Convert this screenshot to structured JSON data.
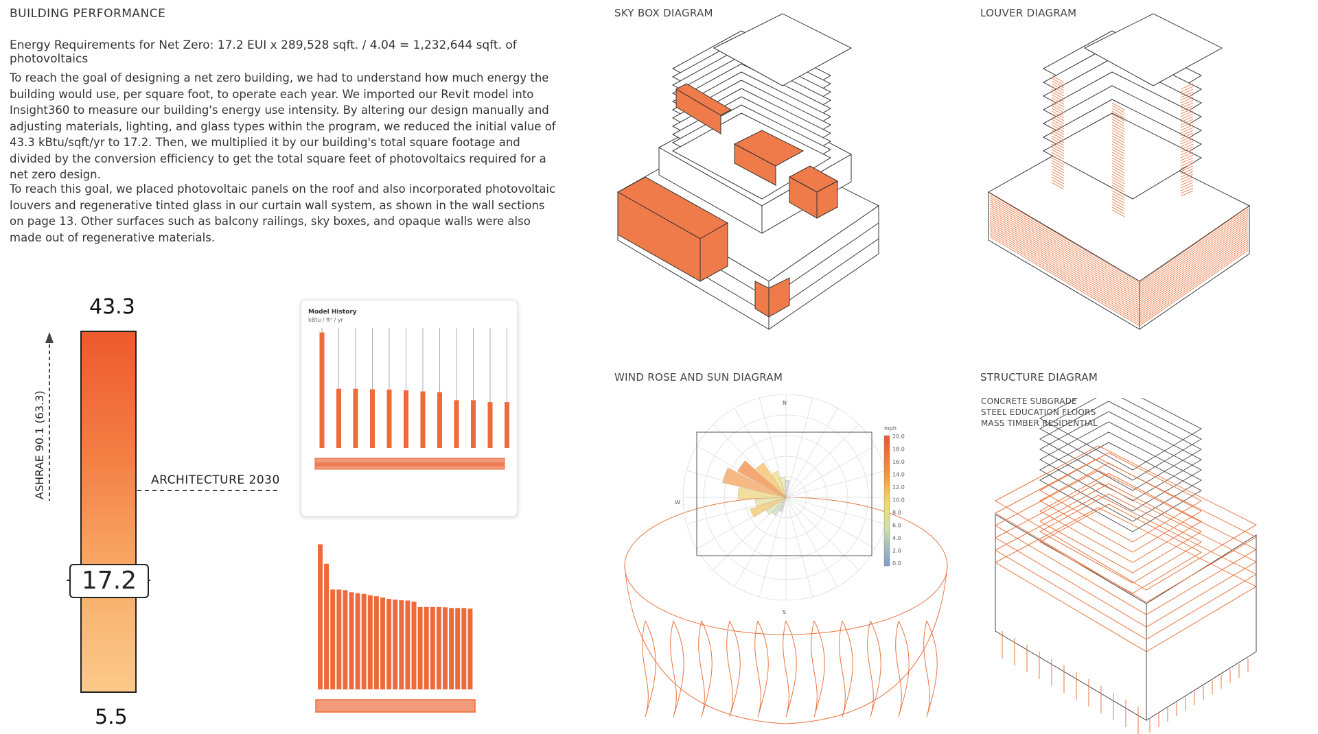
{
  "left": {
    "section_title": "BUILDING PERFORMANCE",
    "equation": "Energy Requirements for Net Zero: 17.2 EUI x 289,528 sqft. / 4.04 = 1,232,644 sqft. of photovoltaics",
    "paragraph1": "To reach the goal of designing a net zero building, we had to understand how much energy the building would use, per square foot, to operate each year. We imported our Revit model into Insight360 to measure our building's energy use intensity. By altering our design manually and adjusting materials, lighting, and glass types within the program, we reduced the initial value of 43.3 kBtu/sqft/yr to 17.2. Then, we multiplied it by our building's total square footage and divided by the conversion efficiency to get the total square feet of photovoltaics required for a net zero design.",
    "paragraph2": "To reach this goal, we placed photovoltaic panels on the roof and also incorporated photovoltaic louvers and regenerative tinted glass in our curtain wall system, as shown in the wall sections on page 13. Other surfaces such as balcony railings, sky boxes, and opaque walls were also made out of regenerative materials."
  },
  "gauge": {
    "top_value": "43.3",
    "current_value": "17.2",
    "bottom_value": "5.5",
    "ashrae_label": "ASHRAE 90.1 (63.3)",
    "arch_label": "ARCHITECTURE 2030",
    "color_top": "#ee5a2c",
    "color_bottom": "#fbc98a"
  },
  "model_history": {
    "title": "Model History",
    "unit": "kBtu / ft² / yr",
    "bar_color": "#ef6a3a",
    "values": [
      43.3,
      22.2,
      22.2,
      22.0,
      21.9,
      21.6,
      21.2,
      20.9,
      17.9,
      17.9,
      17.2,
      17.2
    ]
  },
  "bar_chart2": {
    "values": [
      43.3,
      37.5,
      29.8,
      29.8,
      29.6,
      29.0,
      28.7,
      28.5,
      28.1,
      27.8,
      27.4,
      27.0,
      26.8,
      26.6,
      26.5,
      26.2,
      24.6,
      24.6,
      24.6,
      24.6,
      24.5,
      24.3,
      24.3,
      24.3,
      24.1
    ]
  },
  "diagrams": {
    "sky_box": "SKY BOX DIAGRAM",
    "louver": "LOUVER DIAGRAM",
    "wind_rose": "WIND ROSE AND SUN DIAGRAM",
    "structure": "STRUCTURE DIAGRAM",
    "structure_labels": [
      "CONCRETE SUBGRADE",
      "STEEL EDUCATION FLOORS",
      "MASS TIMBER RESIDENTIAL"
    ]
  },
  "wind_rose": {
    "compass": {
      "n": "N",
      "w": "W",
      "s": "S"
    },
    "legend_unit": "mph",
    "legend_ticks": [
      "20.0",
      "18.0",
      "16.0",
      "14.0",
      "12.0",
      "10.0",
      "8.0",
      "6.0",
      "4.0",
      "2.0",
      "0.0"
    ]
  }
}
